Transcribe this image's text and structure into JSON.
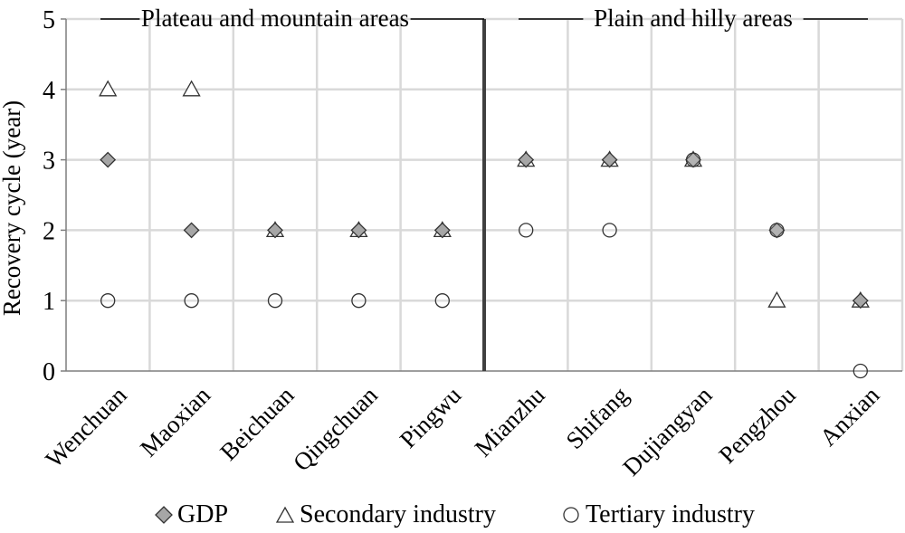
{
  "chart_data": {
    "type": "scatter",
    "ylabel": "Recovery cycle (year)",
    "ylim": [
      0,
      5
    ],
    "yticks": [
      "0",
      "1",
      "2",
      "3",
      "4",
      "5"
    ],
    "grid": true,
    "legend_position": "bottom",
    "categories": [
      "Wenchuan",
      "Maoxian",
      "Beichuan",
      "Qingchuan",
      "Pingwu",
      "Mianzhu",
      "Shifang",
      "Dujiangyan",
      "Pengzhou",
      "Anxian"
    ],
    "groups": [
      {
        "label": "Plateau and mountain areas",
        "categories": [
          "Wenchuan",
          "Maoxian",
          "Beichuan",
          "Qingchuan",
          "Pingwu"
        ]
      },
      {
        "label": "Plain and hilly areas",
        "categories": [
          "Mianzhu",
          "Shifang",
          "Dujiangyan",
          "Pengzhou",
          "Anxian"
        ]
      }
    ],
    "series": [
      {
        "name": "GDP",
        "marker": "diamond",
        "color": "#a6a6a6",
        "values": [
          3,
          2,
          2,
          2,
          2,
          3,
          3,
          3,
          2,
          1
        ]
      },
      {
        "name": "Secondary industry",
        "marker": "triangle",
        "color": "#ffffff",
        "values": [
          4,
          4,
          2,
          2,
          2,
          3,
          3,
          3,
          1,
          1
        ]
      },
      {
        "name": "Tertiary industry",
        "marker": "circle",
        "color": "#ffffff",
        "values": [
          1,
          1,
          1,
          1,
          1,
          2,
          2,
          3,
          2,
          0
        ]
      }
    ]
  }
}
